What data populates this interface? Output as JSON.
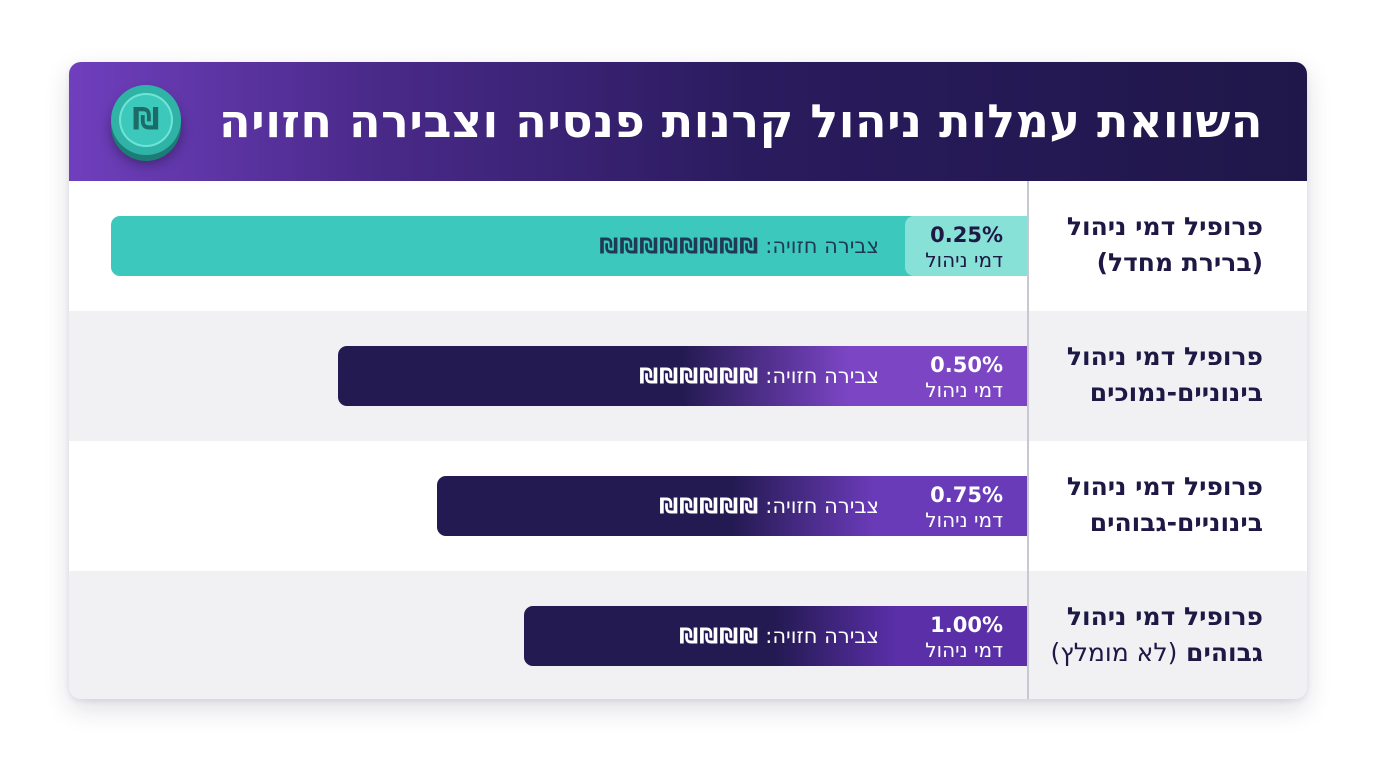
{
  "header": {
    "title": "השוואת עמלות ניהול קרנות פנסיה וצבירה חזויה",
    "coin_symbol": "₪",
    "coin_icon": "shekel-coin-icon"
  },
  "chart_data": {
    "type": "bar",
    "orientation": "horizontal",
    "categories": [
      "פרופיל דמי ניהול (ברירת מחדל)",
      "פרופיל דמי ניהול בינוניים-נמוכים",
      "פרופיל דמי ניהול בינוניים-גבוהים",
      "פרופיל דמי ניהול גבוהים (לא מומלץ)"
    ],
    "rows": [
      {
        "label_line1": "פרופיל דמי ניהול",
        "label_line2": "(ברירת מחדל)",
        "label_line2_extra": "",
        "fee_value": 0.25,
        "fee_text": "0.25%",
        "fee_label": "דמי ניהול",
        "savings_label": "צבירה חזויה:",
        "savings_symbols": "₪₪₪₪₪₪₪₪",
        "symbol_count": 8,
        "color": "#3cc8bc"
      },
      {
        "label_line1": "פרופיל דמי ניהול",
        "label_line2": "בינוניים-נמוכים",
        "label_line2_extra": "",
        "fee_value": 0.5,
        "fee_text": "0.50%",
        "fee_label": "דמי ניהול",
        "savings_label": "צבירה חזויה:",
        "savings_symbols": "₪₪₪₪₪₪",
        "symbol_count": 6,
        "color": "#7b45c4"
      },
      {
        "label_line1": "פרופיל דמי ניהול",
        "label_line2": "בינוניים-גבוהים",
        "label_line2_extra": "",
        "fee_value": 0.75,
        "fee_text": "0.75%",
        "fee_label": "דמי ניהול",
        "savings_label": "צבירה חזויה:",
        "savings_symbols": "₪₪₪₪₪",
        "symbol_count": 5,
        "color": "#6a3bb8"
      },
      {
        "label_line1": "פרופיל דמי ניהול",
        "label_line2": "גבוהים",
        "label_line2_extra": "(לא מומלץ)",
        "fee_value": 1.0,
        "fee_text": "1.00%",
        "fee_label": "דמי ניהול",
        "savings_label": "צבירה חזויה:",
        "savings_symbols": "₪₪₪₪",
        "symbol_count": 4,
        "color": "#5a2fa8"
      }
    ],
    "grid": false,
    "legend": "none"
  }
}
